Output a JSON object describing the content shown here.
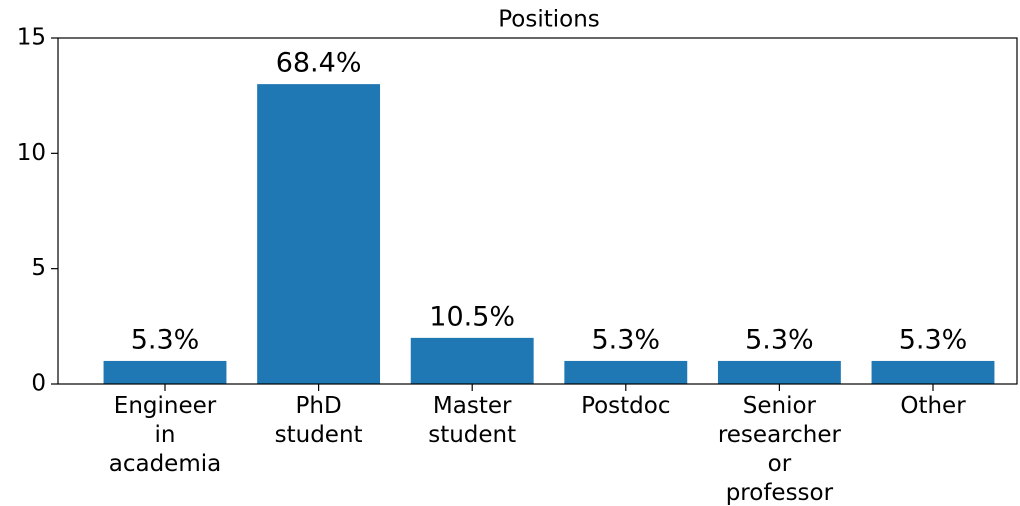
{
  "chart_data": {
    "type": "bar",
    "title": "Positions",
    "categories": [
      "Engineer\nin\nacademia",
      "PhD\nstudent",
      "Master\nstudent",
      "Postdoc",
      "Senior\nresearcher\nor\nprofessor",
      "Other"
    ],
    "values": [
      1,
      13,
      2,
      1,
      1,
      1
    ],
    "annotations": [
      "5.3%",
      "68.4%",
      "10.5%",
      "5.3%",
      "5.3%",
      "5.3%"
    ],
    "color": "#1f77b4",
    "ylim": [
      0,
      15
    ],
    "yticks": [
      0,
      5,
      10,
      15
    ],
    "grid": false
  }
}
